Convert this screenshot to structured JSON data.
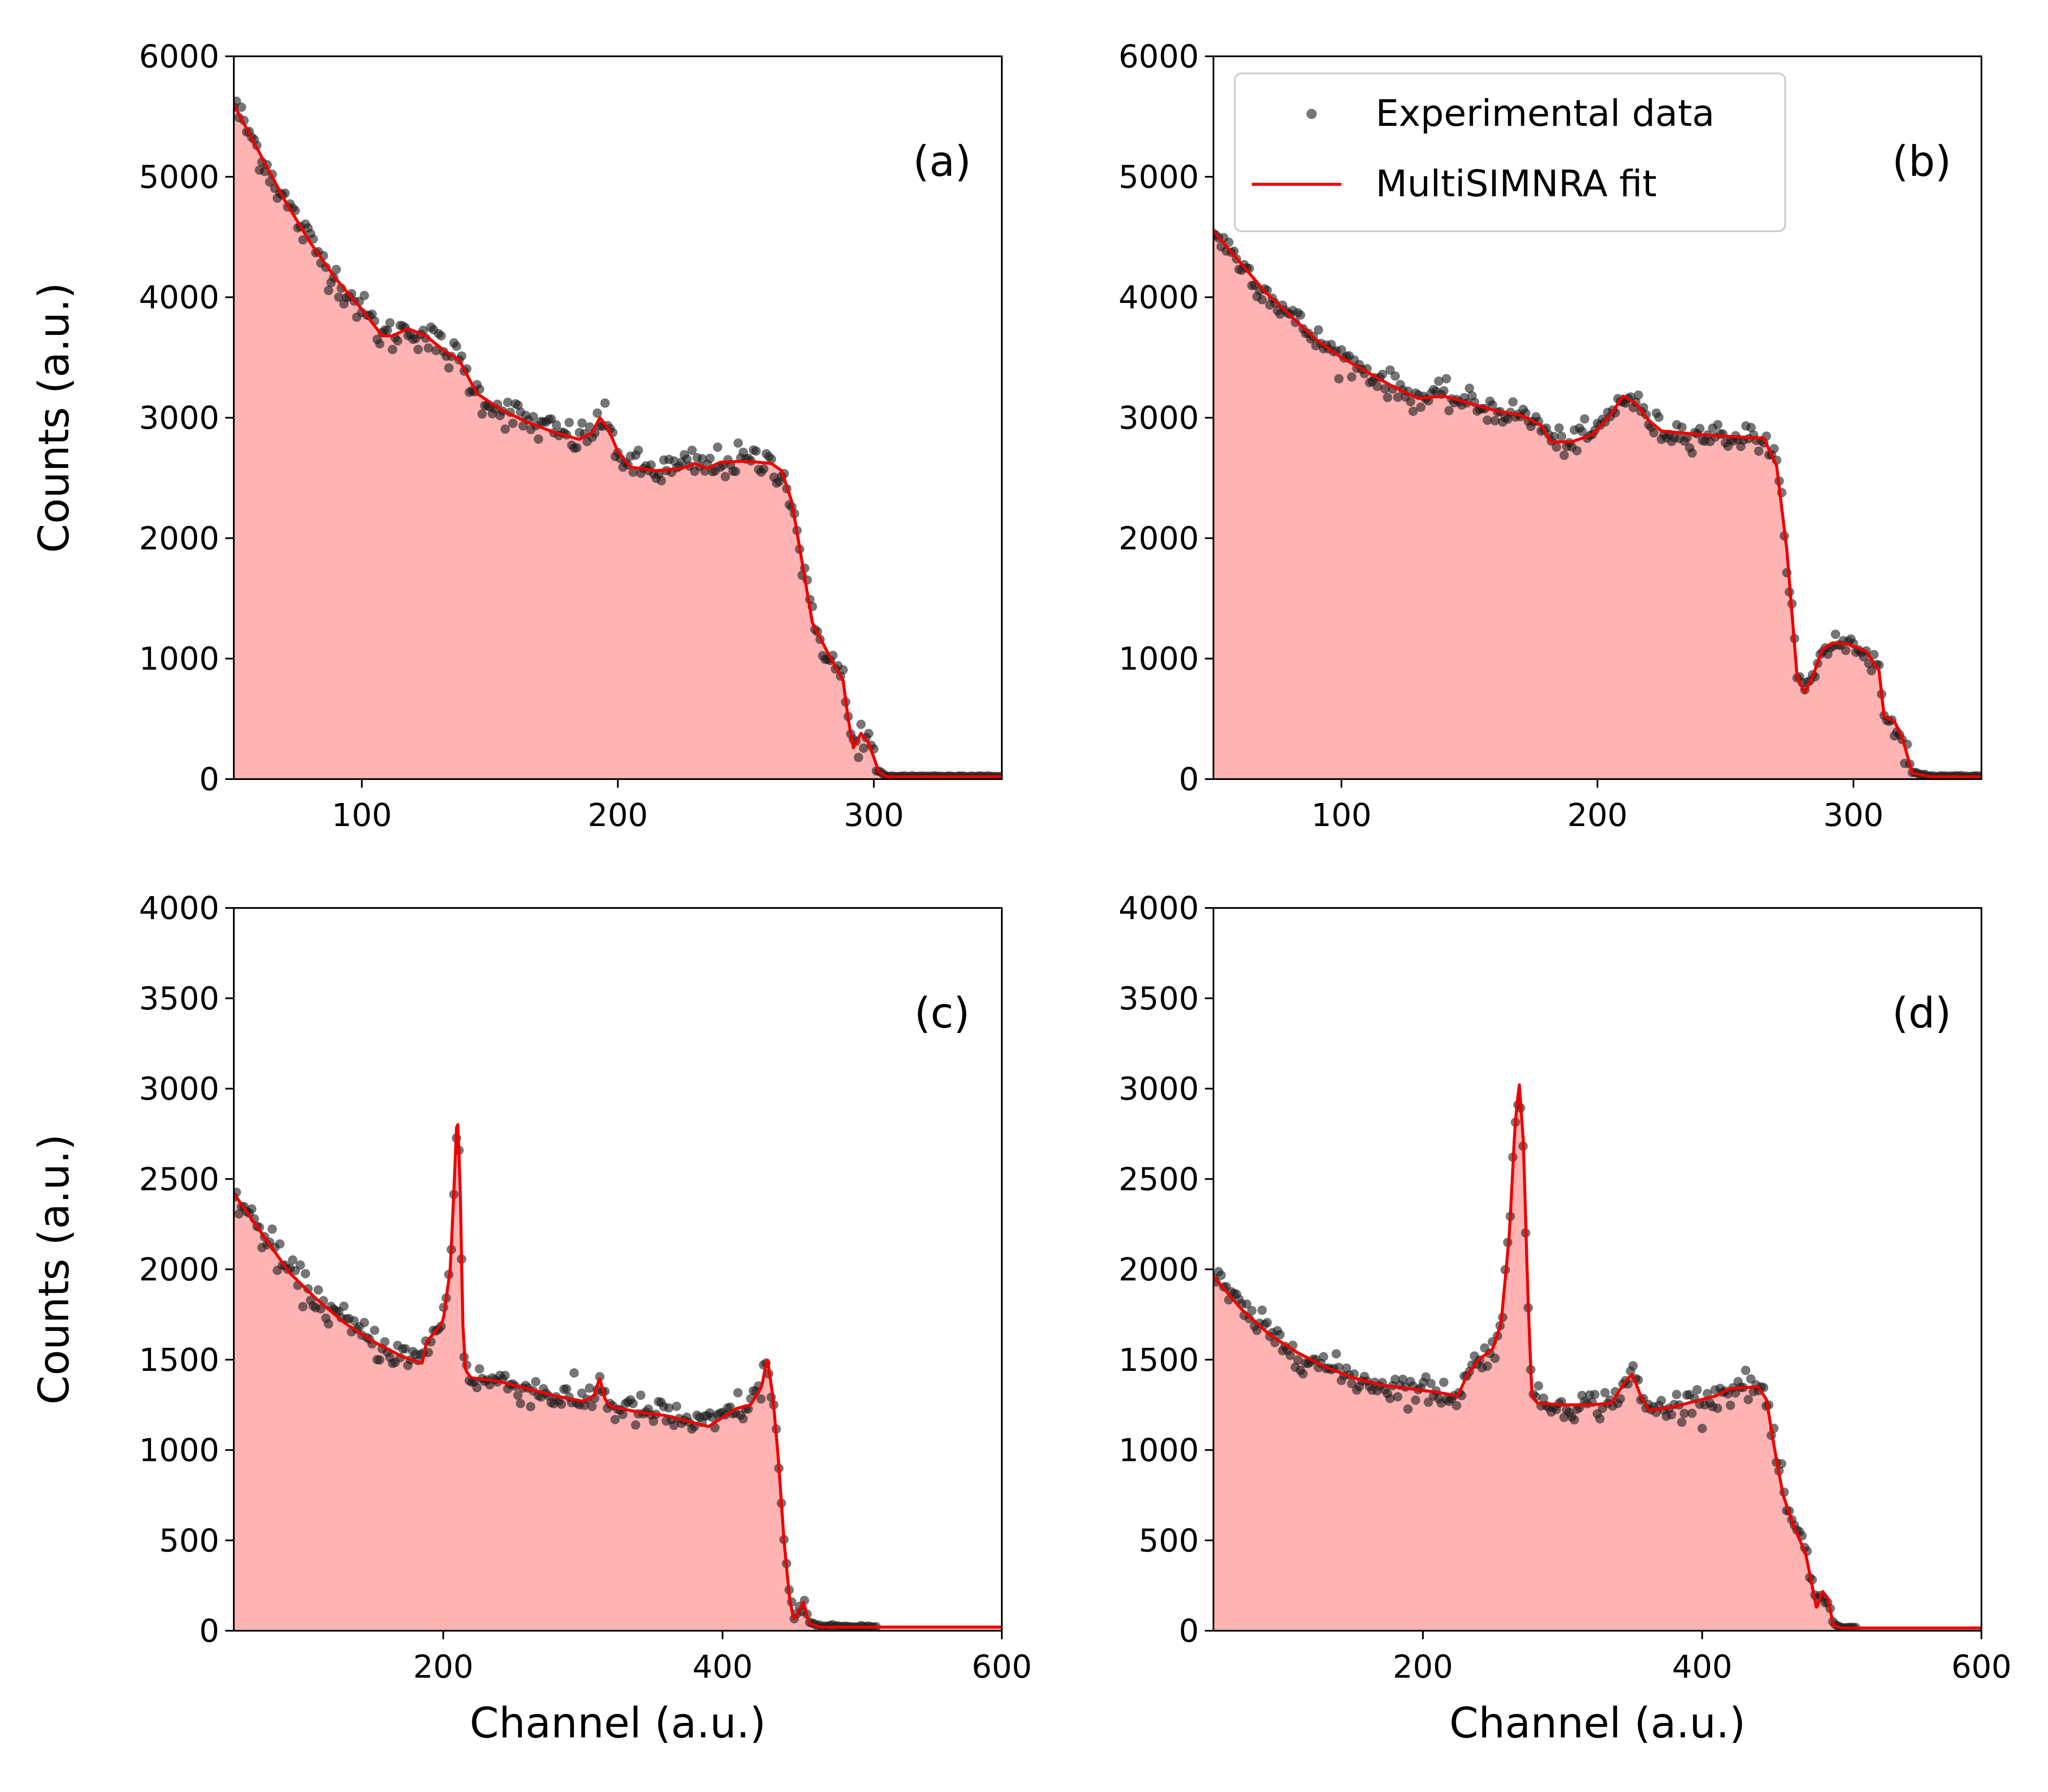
{
  "colors": {
    "fill": "#ffb3b3",
    "fit_line": "#ee0000",
    "data_marker": "#1a1a1a",
    "axis": "#000000"
  },
  "legend": {
    "experimental_label": "Experimental data",
    "fit_label": "MultiSIMNRA fit"
  },
  "chart_data": [
    {
      "type": "line",
      "panel_label": "(a)",
      "xlabel": "",
      "ylabel": "Counts (a.u.)",
      "xlim": [
        50,
        350
      ],
      "ylim": [
        0,
        6000
      ],
      "xticks": [
        100,
        200,
        300
      ],
      "yticks": [
        0,
        1000,
        2000,
        3000,
        4000,
        5000,
        6000
      ],
      "fit_knots": [
        [
          50,
          5600
        ],
        [
          60,
          5200
        ],
        [
          70,
          4800
        ],
        [
          80,
          4450
        ],
        [
          90,
          4150
        ],
        [
          100,
          3900
        ],
        [
          108,
          3680
        ],
        [
          112,
          3680
        ],
        [
          118,
          3740
        ],
        [
          125,
          3680
        ],
        [
          132,
          3560
        ],
        [
          138,
          3480
        ],
        [
          145,
          3200
        ],
        [
          155,
          3060
        ],
        [
          165,
          2960
        ],
        [
          175,
          2880
        ],
        [
          185,
          2820
        ],
        [
          190,
          2880
        ],
        [
          193,
          3000
        ],
        [
          196,
          2920
        ],
        [
          200,
          2720
        ],
        [
          205,
          2590
        ],
        [
          215,
          2560
        ],
        [
          225,
          2580
        ],
        [
          230,
          2620
        ],
        [
          235,
          2580
        ],
        [
          240,
          2630
        ],
        [
          250,
          2640
        ],
        [
          260,
          2620
        ],
        [
          264,
          2560
        ],
        [
          268,
          2300
        ],
        [
          272,
          1800
        ],
        [
          276,
          1300
        ],
        [
          282,
          1050
        ],
        [
          288,
          820
        ],
        [
          290,
          500
        ],
        [
          292,
          260
        ],
        [
          295,
          380
        ],
        [
          298,
          300
        ],
        [
          302,
          60
        ],
        [
          305,
          20
        ],
        [
          350,
          20
        ]
      ],
      "scatter_noise": 70
    },
    {
      "type": "line",
      "panel_label": "(b)",
      "xlabel": "",
      "ylabel": "",
      "xlim": [
        50,
        350
      ],
      "ylim": [
        0,
        6000
      ],
      "xticks": [
        100,
        200,
        300
      ],
      "yticks": [
        0,
        1000,
        2000,
        3000,
        4000,
        5000,
        6000
      ],
      "has_legend": true,
      "fit_knots": [
        [
          50,
          4550
        ],
        [
          60,
          4300
        ],
        [
          70,
          4050
        ],
        [
          80,
          3850
        ],
        [
          90,
          3650
        ],
        [
          100,
          3500
        ],
        [
          110,
          3380
        ],
        [
          120,
          3260
        ],
        [
          130,
          3160
        ],
        [
          140,
          3180
        ],
        [
          150,
          3120
        ],
        [
          160,
          3060
        ],
        [
          170,
          3020
        ],
        [
          178,
          2940
        ],
        [
          182,
          2800
        ],
        [
          190,
          2800
        ],
        [
          198,
          2860
        ],
        [
          205,
          3020
        ],
        [
          210,
          3180
        ],
        [
          215,
          3120
        ],
        [
          220,
          2980
        ],
        [
          225,
          2890
        ],
        [
          240,
          2860
        ],
        [
          255,
          2840
        ],
        [
          265,
          2830
        ],
        [
          270,
          2600
        ],
        [
          274,
          1900
        ],
        [
          278,
          850
        ],
        [
          281,
          720
        ],
        [
          284,
          850
        ],
        [
          288,
          1080
        ],
        [
          292,
          1130
        ],
        [
          298,
          1120
        ],
        [
          305,
          1060
        ],
        [
          310,
          900
        ],
        [
          312,
          520
        ],
        [
          316,
          480
        ],
        [
          319,
          350
        ],
        [
          323,
          50
        ],
        [
          330,
          20
        ],
        [
          350,
          20
        ]
      ],
      "scatter_noise": 55
    },
    {
      "type": "line",
      "panel_label": "(c)",
      "xlabel": "Channel (a.u.)",
      "ylabel": "Counts (a.u.)",
      "xlim": [
        50,
        600
      ],
      "ylim": [
        0,
        4000
      ],
      "xticks": [
        200,
        400,
        600
      ],
      "yticks": [
        0,
        500,
        1000,
        1500,
        2000,
        2500,
        3000,
        3500,
        4000
      ],
      "fit_knots": [
        [
          50,
          2420
        ],
        [
          70,
          2200
        ],
        [
          90,
          1980
        ],
        [
          110,
          1830
        ],
        [
          130,
          1700
        ],
        [
          150,
          1600
        ],
        [
          170,
          1520
        ],
        [
          185,
          1480
        ],
        [
          188,
          1600
        ],
        [
          195,
          1660
        ],
        [
          200,
          1720
        ],
        [
          205,
          2000
        ],
        [
          208,
          2500
        ],
        [
          210,
          2880
        ],
        [
          212,
          2500
        ],
        [
          214,
          1700
        ],
        [
          216,
          1440
        ],
        [
          220,
          1400
        ],
        [
          240,
          1380
        ],
        [
          260,
          1340
        ],
        [
          280,
          1300
        ],
        [
          300,
          1270
        ],
        [
          308,
          1300
        ],
        [
          312,
          1400
        ],
        [
          316,
          1280
        ],
        [
          320,
          1240
        ],
        [
          340,
          1210
        ],
        [
          360,
          1190
        ],
        [
          380,
          1150
        ],
        [
          390,
          1130
        ],
        [
          400,
          1180
        ],
        [
          410,
          1230
        ],
        [
          420,
          1250
        ],
        [
          428,
          1350
        ],
        [
          432,
          1510
        ],
        [
          436,
          1300
        ],
        [
          440,
          950
        ],
        [
          444,
          500
        ],
        [
          448,
          180
        ],
        [
          451,
          60
        ],
        [
          454,
          100
        ],
        [
          458,
          160
        ],
        [
          462,
          40
        ],
        [
          470,
          20
        ],
        [
          510,
          20
        ]
      ],
      "scatter_noise": 45
    },
    {
      "type": "line",
      "panel_label": "(d)",
      "xlabel": "Channel (a.u.)",
      "ylabel": "",
      "xlim": [
        50,
        600
      ],
      "ylim": [
        0,
        4000
      ],
      "xticks": [
        200,
        400,
        600
      ],
      "yticks": [
        0,
        500,
        1000,
        1500,
        2000,
        2500,
        3000,
        3500,
        4000
      ],
      "fit_knots": [
        [
          50,
          1960
        ],
        [
          70,
          1780
        ],
        [
          90,
          1640
        ],
        [
          110,
          1540
        ],
        [
          130,
          1460
        ],
        [
          150,
          1400
        ],
        [
          170,
          1360
        ],
        [
          190,
          1340
        ],
        [
          210,
          1320
        ],
        [
          225,
          1300
        ],
        [
          232,
          1420
        ],
        [
          240,
          1500
        ],
        [
          250,
          1560
        ],
        [
          256,
          1700
        ],
        [
          262,
          2200
        ],
        [
          266,
          2800
        ],
        [
          269,
          3030
        ],
        [
          272,
          2700
        ],
        [
          275,
          1900
        ],
        [
          278,
          1300
        ],
        [
          282,
          1260
        ],
        [
          300,
          1250
        ],
        [
          320,
          1250
        ],
        [
          335,
          1260
        ],
        [
          345,
          1380
        ],
        [
          350,
          1420
        ],
        [
          356,
          1300
        ],
        [
          362,
          1220
        ],
        [
          380,
          1240
        ],
        [
          390,
          1260
        ],
        [
          400,
          1280
        ],
        [
          410,
          1300
        ],
        [
          420,
          1340
        ],
        [
          440,
          1350
        ],
        [
          446,
          1280
        ],
        [
          452,
          1000
        ],
        [
          458,
          750
        ],
        [
          466,
          570
        ],
        [
          474,
          430
        ],
        [
          478,
          280
        ],
        [
          482,
          120
        ],
        [
          486,
          220
        ],
        [
          490,
          180
        ],
        [
          494,
          30
        ],
        [
          500,
          15
        ],
        [
          510,
          15
        ]
      ],
      "scatter_noise": 40
    }
  ]
}
